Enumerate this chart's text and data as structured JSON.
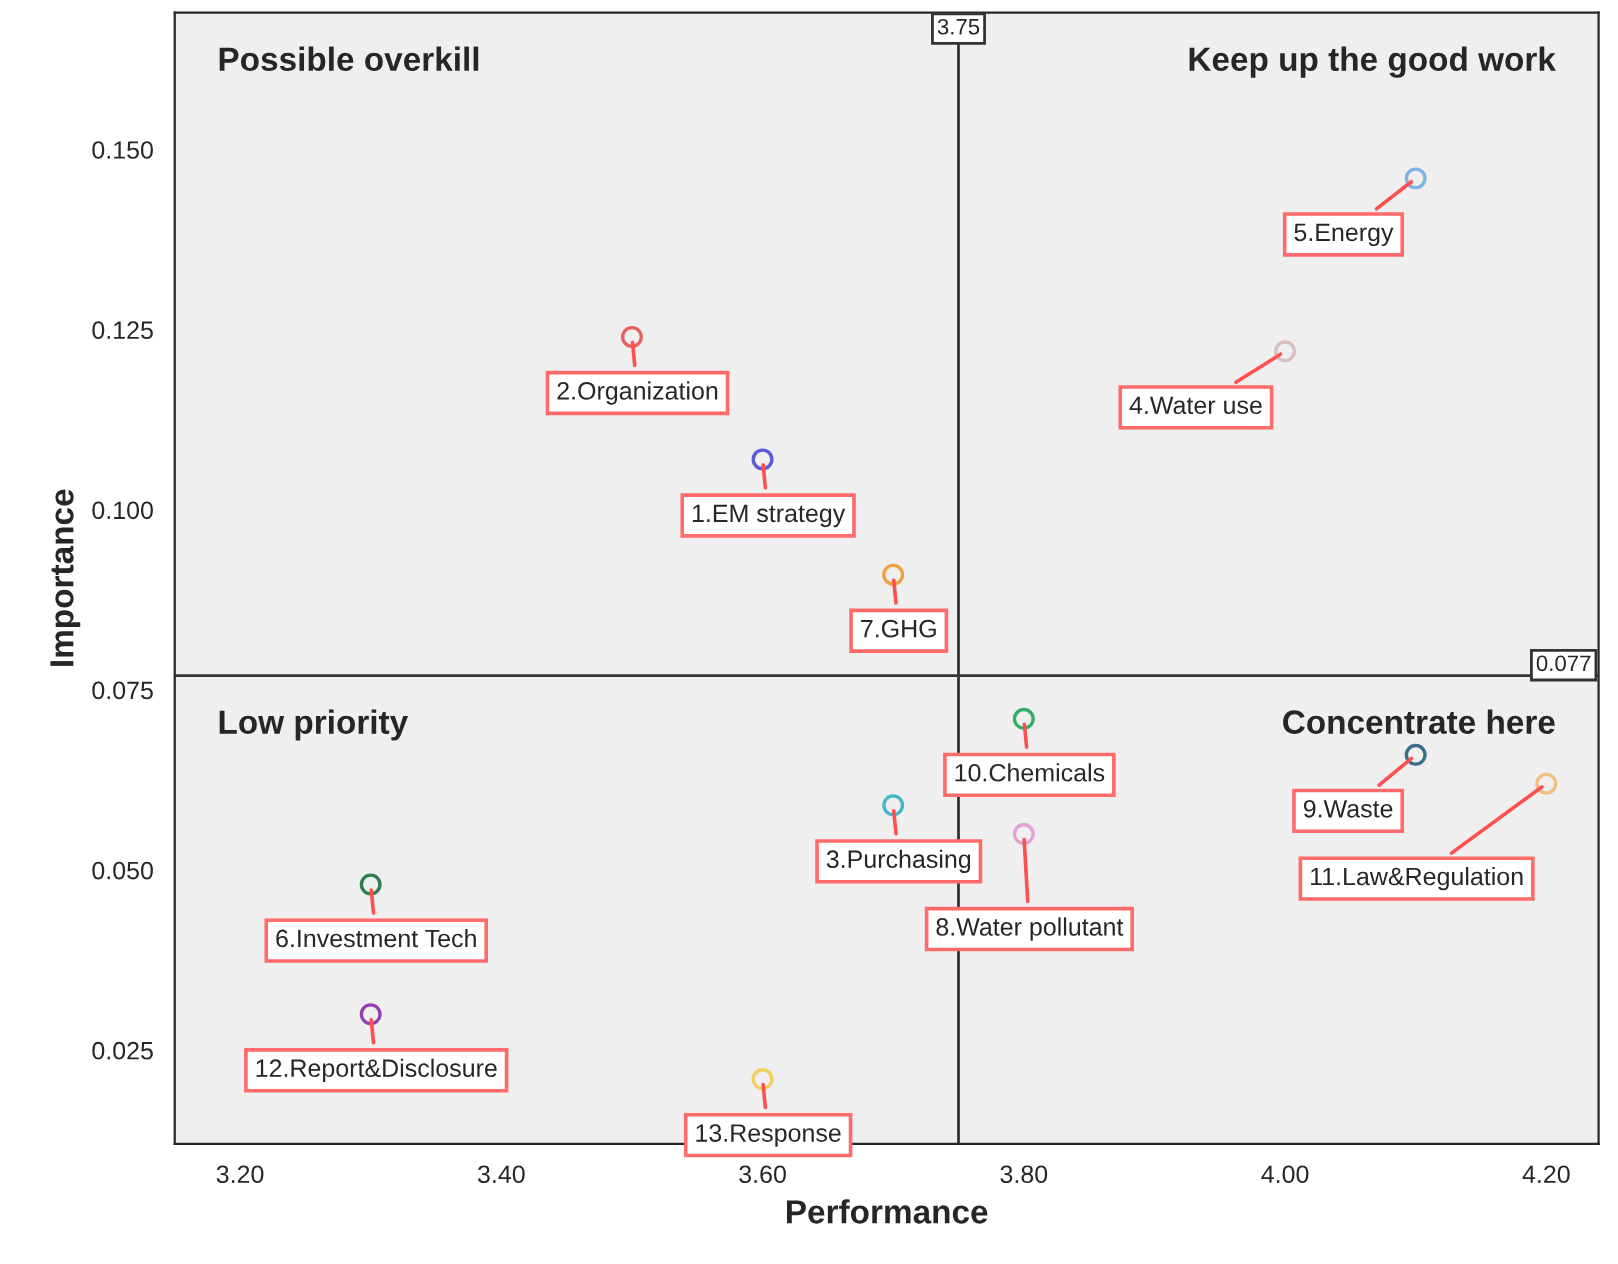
{
  "chart_data": {
    "type": "scatter",
    "xlabel": "Performance",
    "ylabel": "Importance",
    "xlim": [
      3.15,
      4.24
    ],
    "ylim": [
      0.012,
      0.169
    ],
    "xticks": [
      {
        "value": 3.2,
        "label": "3.20"
      },
      {
        "value": 3.4,
        "label": "3.40"
      },
      {
        "value": 3.6,
        "label": "3.60"
      },
      {
        "value": 3.8,
        "label": "3.80"
      },
      {
        "value": 4.0,
        "label": "4.00"
      },
      {
        "value": 4.2,
        "label": "4.20"
      }
    ],
    "yticks": [
      {
        "value": 0.025,
        "label": "0.025"
      },
      {
        "value": 0.05,
        "label": "0.050"
      },
      {
        "value": 0.075,
        "label": "0.075"
      },
      {
        "value": 0.1,
        "label": "0.100"
      },
      {
        "value": 0.125,
        "label": "0.125"
      },
      {
        "value": 0.15,
        "label": "0.150"
      }
    ],
    "grid": false,
    "marker": "circle",
    "ref_lines": [
      {
        "axis": "x",
        "value": 3.75,
        "label": "3.75",
        "color": "#333333"
      },
      {
        "axis": "y",
        "value": 0.077,
        "label": "0.077",
        "color": "#333333"
      }
    ],
    "annotations": [
      "Possible overkill",
      "Keep up the good work",
      "Low priority",
      "Concentrate here"
    ],
    "series": [
      {
        "name": "1.EM strategy",
        "color": "#5b5bd6",
        "x": [
          3.6
        ],
        "values": [
          0.107
        ]
      },
      {
        "name": "2.Organization",
        "color": "#e8615f",
        "x": [
          3.5
        ],
        "values": [
          0.124
        ]
      },
      {
        "name": "3.Purchasing",
        "color": "#40b8c8",
        "x": [
          3.7
        ],
        "values": [
          0.059
        ]
      },
      {
        "name": "4.Water use",
        "color": "#d8c0c0",
        "x": [
          4.0
        ],
        "values": [
          0.122
        ]
      },
      {
        "name": "5.Energy",
        "color": "#7fb2e5",
        "x": [
          4.1
        ],
        "values": [
          0.146
        ]
      },
      {
        "name": "6.Investment Tech",
        "color": "#2e7d4f",
        "x": [
          3.3
        ],
        "values": [
          0.048
        ]
      },
      {
        "name": "7.GHG",
        "color": "#f0a040",
        "x": [
          3.7
        ],
        "values": [
          0.091
        ]
      },
      {
        "name": "8.Water pollutant",
        "color": "#e8a0d0",
        "x": [
          3.8
        ],
        "values": [
          0.055
        ]
      },
      {
        "name": "9.Waste",
        "color": "#3a6f8a",
        "x": [
          4.1
        ],
        "values": [
          0.066
        ]
      },
      {
        "name": "10.Chemicals",
        "color": "#30b060",
        "x": [
          3.8
        ],
        "values": [
          0.071
        ]
      },
      {
        "name": "11.Law&Regulation",
        "color": "#f0c080",
        "x": [
          4.2
        ],
        "values": [
          0.062
        ]
      },
      {
        "name": "12.Report&Disclosure",
        "color": "#9040b0",
        "x": [
          3.3
        ],
        "values": [
          0.03
        ]
      },
      {
        "name": "13.Response",
        "color": "#f0d060",
        "x": [
          3.6
        ],
        "values": [
          0.021
        ]
      }
    ]
  }
}
